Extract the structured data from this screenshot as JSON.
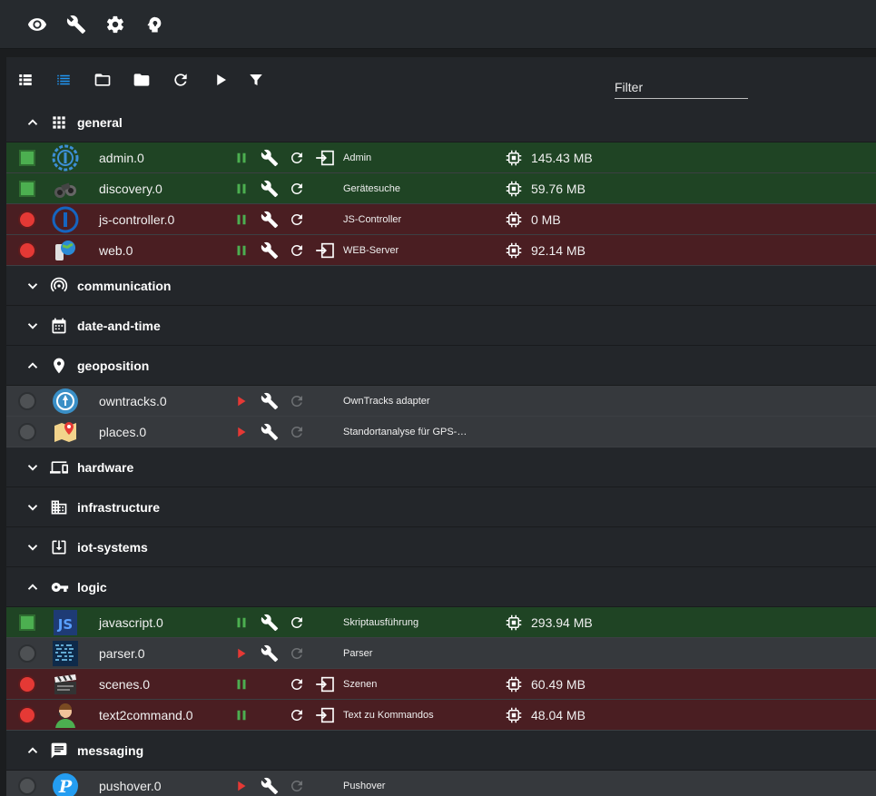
{
  "topbar": {
    "icons": [
      "eye-icon",
      "wrench-icon",
      "gear-icon",
      "head-icon"
    ]
  },
  "toolbar": {
    "icons": [
      "list-view-icon",
      "compact-list-icon",
      "folder-open-icon",
      "folder-icon",
      "refresh-icon",
      "play-icon",
      "funnel-icon"
    ],
    "filter_placeholder": "Filter"
  },
  "colors": {
    "running": "#1f4424",
    "error": "#4a1e22",
    "stopped": "#36393d",
    "pause": "#4caf50",
    "play": "#e53935",
    "accent": "#2196f3"
  },
  "groups": [
    {
      "label": "general",
      "expanded": true,
      "icon": "grid-icon",
      "items": [
        {
          "name": "admin.0",
          "state": "running",
          "run": "pause",
          "config": true,
          "restart": true,
          "link": true,
          "desc": "Admin",
          "mem": "145.43 MB",
          "icon": "admin-logo-icon"
        },
        {
          "name": "discovery.0",
          "state": "running",
          "run": "pause",
          "config": true,
          "restart": true,
          "link": false,
          "desc": "Gerätesuche",
          "mem": "59.76 MB",
          "icon": "binoculars-icon"
        },
        {
          "name": "js-controller.0",
          "state": "error",
          "run": "pause",
          "config": true,
          "restart": true,
          "link": false,
          "desc": "JS-Controller",
          "mem": "0 MB",
          "icon": "iobroker-logo-icon"
        },
        {
          "name": "web.0",
          "state": "error",
          "run": "pause",
          "config": true,
          "restart": true,
          "link": true,
          "desc": "WEB-Server",
          "mem": "92.14 MB",
          "icon": "web-globe-icon"
        }
      ]
    },
    {
      "label": "communication",
      "expanded": false,
      "icon": "signal-icon",
      "items": []
    },
    {
      "label": "date-and-time",
      "expanded": false,
      "icon": "calendar-icon",
      "items": []
    },
    {
      "label": "geoposition",
      "expanded": true,
      "icon": "map-pin-icon",
      "items": [
        {
          "name": "owntracks.0",
          "state": "stopped",
          "run": "play",
          "config": true,
          "restart": true,
          "link": false,
          "desc": "OwnTracks adapter",
          "mem": "",
          "icon": "owntracks-logo-icon"
        },
        {
          "name": "places.0",
          "state": "stopped",
          "run": "play",
          "config": true,
          "restart": true,
          "link": false,
          "desc": "Standortanalyse für GPS-…",
          "mem": "",
          "icon": "map-places-icon"
        }
      ]
    },
    {
      "label": "hardware",
      "expanded": false,
      "icon": "devices-icon",
      "items": []
    },
    {
      "label": "infrastructure",
      "expanded": false,
      "icon": "building-icon",
      "items": []
    },
    {
      "label": "iot-systems",
      "expanded": false,
      "icon": "download-box-icon",
      "items": []
    },
    {
      "label": "logic",
      "expanded": true,
      "icon": "key-icon",
      "items": [
        {
          "name": "javascript.0",
          "state": "running",
          "run": "pause",
          "config": true,
          "restart": true,
          "link": false,
          "desc": "Skriptausführung",
          "mem": "293.94 MB",
          "icon": "js-logo-icon"
        },
        {
          "name": "parser.0",
          "state": "stopped",
          "run": "play",
          "config": true,
          "restart": true,
          "link": false,
          "desc": "Parser",
          "mem": "",
          "icon": "parser-logo-icon"
        },
        {
          "name": "scenes.0",
          "state": "error",
          "run": "pause",
          "config": false,
          "restart": true,
          "link": true,
          "desc": "Szenen",
          "mem": "60.49 MB",
          "icon": "clapperboard-icon"
        },
        {
          "name": "text2command.0",
          "state": "error",
          "run": "pause",
          "config": false,
          "restart": true,
          "link": true,
          "desc": "Text zu Kommandos",
          "mem": "48.04 MB",
          "icon": "operator-icon"
        }
      ]
    },
    {
      "label": "messaging",
      "expanded": true,
      "icon": "message-icon",
      "items": [
        {
          "name": "pushover.0",
          "state": "stopped",
          "run": "play",
          "config": true,
          "restart": true,
          "link": false,
          "desc": "Pushover",
          "mem": "",
          "icon": "pushover-logo-icon"
        }
      ]
    }
  ]
}
